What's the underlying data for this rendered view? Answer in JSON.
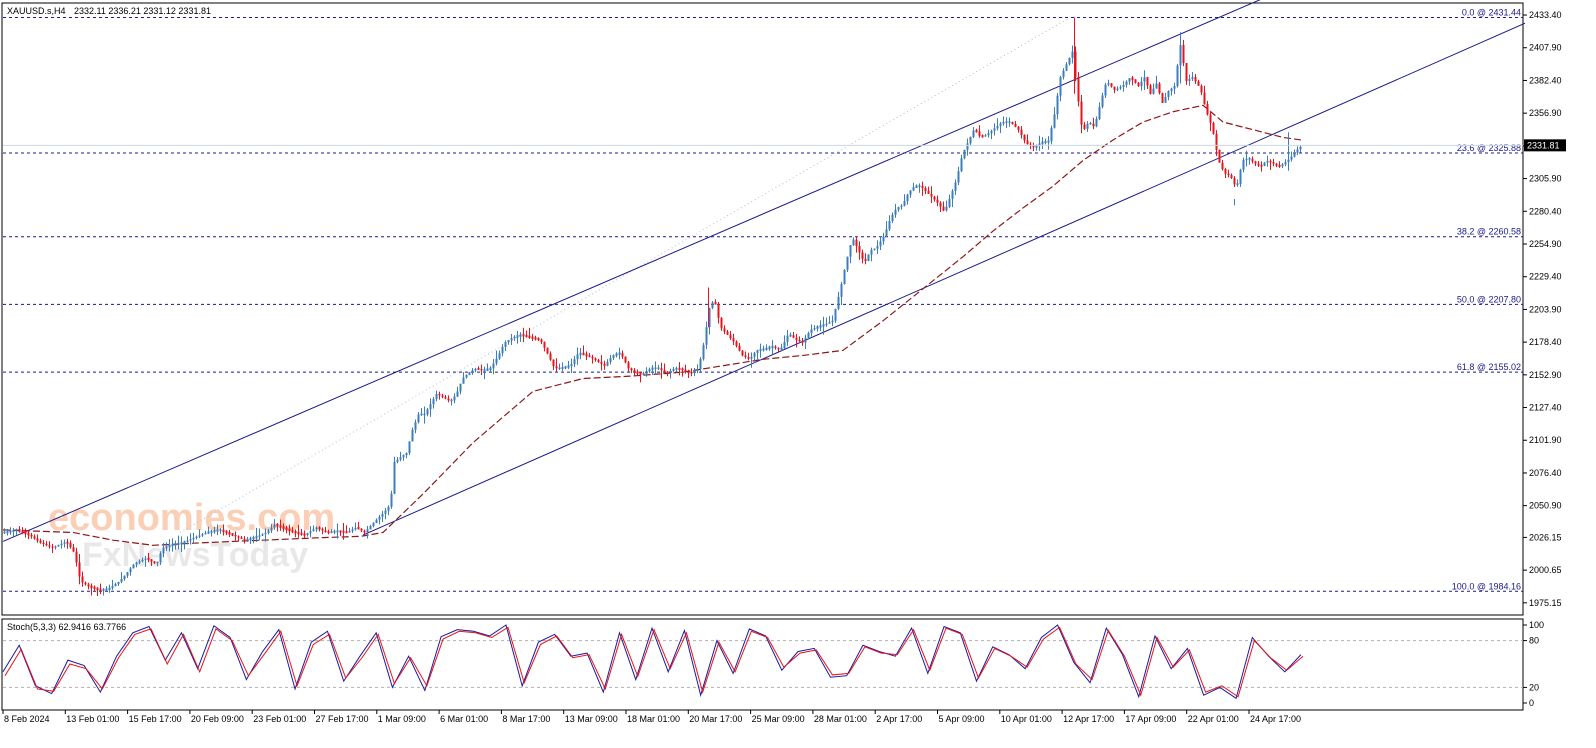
{
  "header": {
    "symbol": "XAUUSD.s,H4",
    "ohlc": "2332.11 2336.21 2331.12 2331.81"
  },
  "colors": {
    "bull": "#3d7dbd",
    "bear": "#e8131b",
    "channel": "#1a1a8c",
    "fib": "#1a1a8c",
    "ma": "#8b1a1a",
    "stoch_main": "#1a1aa0",
    "stoch_signal": "#e8131b"
  },
  "chart_data": [
    {
      "type": "candlestick",
      "title": "XAUUSD.s,H4",
      "ylim": [
        1968,
        2442
      ],
      "y_ticks": [
        "2433.40",
        "2407.90",
        "2382.40",
        "2356.90",
        "2331.40",
        "2305.90",
        "2280.40",
        "2254.90",
        "2229.40",
        "2203.90",
        "2178.40",
        "2152.90",
        "2127.40",
        "2101.90",
        "2076.40",
        "2050.90",
        "2026.15",
        "2000.65",
        "1975.15"
      ],
      "x_ticks": [
        "8 Feb 2024",
        "13 Feb 01:00",
        "15 Feb 17:00",
        "20 Feb 09:00",
        "23 Feb 01:00",
        "27 Feb 17:00",
        "1 Mar 09:00",
        "6 Mar 01:00",
        "8 Mar 17:00",
        "13 Mar 09:00",
        "18 Mar 01:00",
        "20 Mar 17:00",
        "25 Mar 09:00",
        "28 Mar 01:00",
        "2 Apr 17:00",
        "5 Apr 09:00",
        "10 Apr 01:00",
        "12 Apr 17:00",
        "17 Apr 09:00",
        "22 Apr 01:00",
        "24 Apr 17:00"
      ],
      "current_price": "2331.81",
      "fibonacci_levels": [
        {
          "label": "0.0 @ 2431.44",
          "value": 2431.44
        },
        {
          "label": "23.6 @ 2325.88",
          "value": 2325.88
        },
        {
          "label": "38.2 @ 2260.58",
          "value": 2260.58
        },
        {
          "label": "50.0 @ 2207.80",
          "value": 2207.8
        },
        {
          "label": "61.8 @ 2155.02",
          "value": 2155.02
        },
        {
          "label": "100.0 @ 1984.16",
          "value": 1984.16
        }
      ],
      "close_path": [
        [
          0,
          2030
        ],
        [
          12,
          2032
        ],
        [
          25,
          2028
        ],
        [
          36,
          2022
        ],
        [
          48,
          2018
        ],
        [
          62,
          2023
        ],
        [
          70,
          2014
        ],
        [
          76,
          1992
        ],
        [
          84,
          1988
        ],
        [
          95,
          1985
        ],
        [
          104,
          1986
        ],
        [
          115,
          1992
        ],
        [
          122,
          1998
        ],
        [
          130,
          2006
        ],
        [
          142,
          2010
        ],
        [
          152,
          2005
        ],
        [
          158,
          2018
        ],
        [
          166,
          2020
        ],
        [
          178,
          2022
        ],
        [
          190,
          2026
        ],
        [
          202,
          2030
        ],
        [
          215,
          2032
        ],
        [
          228,
          2028
        ],
        [
          240,
          2024
        ],
        [
          250,
          2026
        ],
        [
          262,
          2030
        ],
        [
          270,
          2036
        ],
        [
          280,
          2033
        ],
        [
          290,
          2030
        ],
        [
          300,
          2028
        ],
        [
          312,
          2034
        ],
        [
          322,
          2030
        ],
        [
          333,
          2031
        ],
        [
          342,
          2030
        ],
        [
          352,
          2034
        ],
        [
          360,
          2030
        ],
        [
          372,
          2040
        ],
        [
          380,
          2046
        ],
        [
          386,
          2052
        ],
        [
          390,
          2085
        ],
        [
          395,
          2088
        ],
        [
          402,
          2092
        ],
        [
          408,
          2110
        ],
        [
          414,
          2122
        ],
        [
          420,
          2122
        ],
        [
          426,
          2130
        ],
        [
          432,
          2138
        ],
        [
          440,
          2135
        ],
        [
          446,
          2132
        ],
        [
          452,
          2138
        ],
        [
          458,
          2150
        ],
        [
          465,
          2155
        ],
        [
          472,
          2158
        ],
        [
          478,
          2156
        ],
        [
          486,
          2158
        ],
        [
          494,
          2168
        ],
        [
          500,
          2178
        ],
        [
          508,
          2182
        ],
        [
          516,
          2184
        ],
        [
          526,
          2182
        ],
        [
          536,
          2180
        ],
        [
          544,
          2168
        ],
        [
          550,
          2158
        ],
        [
          556,
          2158
        ],
        [
          566,
          2160
        ],
        [
          574,
          2170
        ],
        [
          582,
          2168
        ],
        [
          590,
          2165
        ],
        [
          600,
          2160
        ],
        [
          608,
          2168
        ],
        [
          616,
          2170
        ],
        [
          624,
          2158
        ],
        [
          630,
          2155
        ],
        [
          638,
          2153
        ],
        [
          646,
          2158
        ],
        [
          654,
          2158
        ],
        [
          662,
          2154
        ],
        [
          670,
          2158
        ],
        [
          678,
          2157
        ],
        [
          686,
          2154
        ],
        [
          694,
          2158
        ],
        [
          700,
          2180
        ],
        [
          705,
          2205
        ],
        [
          710,
          2212
        ],
        [
          716,
          2190
        ],
        [
          722,
          2185
        ],
        [
          730,
          2178
        ],
        [
          738,
          2168
        ],
        [
          745,
          2165
        ],
        [
          752,
          2172
        ],
        [
          760,
          2173
        ],
        [
          768,
          2175
        ],
        [
          776,
          2172
        ],
        [
          784,
          2185
        ],
        [
          792,
          2180
        ],
        [
          798,
          2178
        ],
        [
          806,
          2188
        ],
        [
          812,
          2190
        ],
        [
          820,
          2192
        ],
        [
          828,
          2195
        ],
        [
          836,
          2220
        ],
        [
          842,
          2242
        ],
        [
          848,
          2260
        ],
        [
          854,
          2250
        ],
        [
          860,
          2240
        ],
        [
          866,
          2250
        ],
        [
          872,
          2252
        ],
        [
          880,
          2262
        ],
        [
          886,
          2275
        ],
        [
          892,
          2283
        ],
        [
          898,
          2285
        ],
        [
          904,
          2295
        ],
        [
          910,
          2300
        ],
        [
          916,
          2300
        ],
        [
          924,
          2294
        ],
        [
          932,
          2288
        ],
        [
          940,
          2280
        ],
        [
          946,
          2292
        ],
        [
          952,
          2305
        ],
        [
          958,
          2325
        ],
        [
          964,
          2335
        ],
        [
          970,
          2345
        ],
        [
          976,
          2338
        ],
        [
          982,
          2340
        ],
        [
          990,
          2345
        ],
        [
          998,
          2350
        ],
        [
          1006,
          2350
        ],
        [
          1014,
          2344
        ],
        [
          1022,
          2333
        ],
        [
          1030,
          2330
        ],
        [
          1036,
          2334
        ],
        [
          1044,
          2335
        ],
        [
          1050,
          2356
        ],
        [
          1056,
          2385
        ],
        [
          1062,
          2395
        ],
        [
          1068,
          2405
        ],
        [
          1073,
          2372
        ],
        [
          1078,
          2342
        ],
        [
          1084,
          2350
        ],
        [
          1090,
          2346
        ],
        [
          1096,
          2365
        ],
        [
          1102,
          2382
        ],
        [
          1110,
          2375
        ],
        [
          1118,
          2378
        ],
        [
          1126,
          2385
        ],
        [
          1134,
          2378
        ],
        [
          1140,
          2385
        ],
        [
          1146,
          2372
        ],
        [
          1152,
          2380
        ],
        [
          1158,
          2365
        ],
        [
          1164,
          2374
        ],
        [
          1170,
          2378
        ],
        [
          1176,
          2410
        ],
        [
          1182,
          2382
        ],
        [
          1188,
          2385
        ],
        [
          1196,
          2376
        ],
        [
          1202,
          2358
        ],
        [
          1208,
          2345
        ],
        [
          1214,
          2320
        ],
        [
          1220,
          2310
        ],
        [
          1226,
          2308
        ],
        [
          1232,
          2298
        ],
        [
          1238,
          2320
        ],
        [
          1244,
          2322
        ],
        [
          1250,
          2318
        ],
        [
          1256,
          2315
        ],
        [
          1262,
          2320
        ],
        [
          1268,
          2318
        ],
        [
          1274,
          2315
        ],
        [
          1280,
          2318
        ],
        [
          1286,
          2322
        ],
        [
          1292,
          2328
        ],
        [
          1298,
          2332
        ]
      ],
      "spikes": [
        {
          "x": 704,
          "high": 2221,
          "low": 2190
        },
        {
          "x": 1070,
          "high": 2431.44,
          "low": 2372
        },
        {
          "x": 1176,
          "high": 2420,
          "low": 2380
        },
        {
          "x": 1230,
          "high": 2290,
          "low": 2285
        },
        {
          "x": 1284,
          "high": 2342,
          "low": 2312
        }
      ],
      "moving_average": [
        [
          0,
          2032
        ],
        [
          70,
          2030
        ],
        [
          110,
          2024
        ],
        [
          150,
          2020
        ],
        [
          200,
          2022
        ],
        [
          260,
          2024
        ],
        [
          320,
          2026
        ],
        [
          358,
          2027
        ],
        [
          380,
          2030
        ],
        [
          420,
          2060
        ],
        [
          470,
          2100
        ],
        [
          530,
          2140
        ],
        [
          580,
          2150
        ],
        [
          630,
          2152
        ],
        [
          680,
          2155
        ],
        [
          720,
          2160
        ],
        [
          760,
          2165
        ],
        [
          800,
          2168
        ],
        [
          840,
          2172
        ],
        [
          880,
          2195
        ],
        [
          920,
          2220
        ],
        [
          960,
          2245
        ],
        [
          990,
          2265
        ],
        [
          1020,
          2283
        ],
        [
          1050,
          2300
        ],
        [
          1080,
          2320
        ],
        [
          1110,
          2336
        ],
        [
          1140,
          2350
        ],
        [
          1170,
          2358
        ],
        [
          1200,
          2363
        ],
        [
          1220,
          2350
        ],
        [
          1250,
          2344
        ],
        [
          1280,
          2338
        ],
        [
          1298,
          2336
        ]
      ],
      "channel_lines": [
        {
          "name": "upper",
          "points": [
            [
              0,
              2023
            ],
            [
              1262,
              2447
            ]
          ]
        },
        {
          "name": "lower",
          "points": [
            [
              360,
              2028
            ],
            [
              1522,
              2427
            ]
          ]
        }
      ]
    },
    {
      "type": "line",
      "title": "Stoch(5,3,3) 62.9416 63.7766",
      "ylim": [
        0,
        100
      ],
      "y_ticks": [
        "100",
        "80",
        "20",
        "0"
      ],
      "levels": [
        80,
        20
      ],
      "series": [
        {
          "name": "main",
          "values": [
            40,
            74,
            22,
            12,
            55,
            48,
            14,
            60,
            90,
            98,
            55,
            90,
            44,
            99,
            84,
            30,
            66,
            94,
            18,
            78,
            92,
            28,
            60,
            90,
            20,
            60,
            16,
            85,
            94,
            92,
            86,
            100,
            22,
            78,
            88,
            60,
            64,
            14,
            90,
            30,
            96,
            40,
            93,
            10,
            80,
            38,
            95,
            86,
            42,
            66,
            70,
            33,
            35,
            74,
            66,
            60,
            96,
            38,
            98,
            90,
            28,
            72,
            62,
            44,
            84,
            100,
            52,
            26,
            96,
            62,
            8,
            86,
            44,
            70,
            10,
            20,
            6,
            84,
            60,
            40,
            62
          ]
        },
        {
          "name": "signal",
          "values": [
            35,
            69,
            18,
            15,
            50,
            44,
            18,
            58,
            88,
            95,
            50,
            88,
            40,
            95,
            80,
            35,
            63,
            92,
            22,
            75,
            88,
            32,
            58,
            88,
            25,
            58,
            22,
            82,
            92,
            90,
            84,
            97,
            26,
            75,
            86,
            58,
            62,
            18,
            88,
            34,
            94,
            44,
            90,
            14,
            78,
            40,
            92,
            84,
            46,
            64,
            68,
            36,
            38,
            72,
            64,
            62,
            94,
            42,
            96,
            88,
            32,
            70,
            60,
            46,
            82,
            97,
            50,
            30,
            93,
            60,
            10,
            84,
            46,
            68,
            14,
            22,
            8,
            80,
            58,
            42,
            60
          ]
        }
      ]
    }
  ],
  "watermark": {
    "line1": "economies.com",
    "line2": "FxNewsToday"
  }
}
